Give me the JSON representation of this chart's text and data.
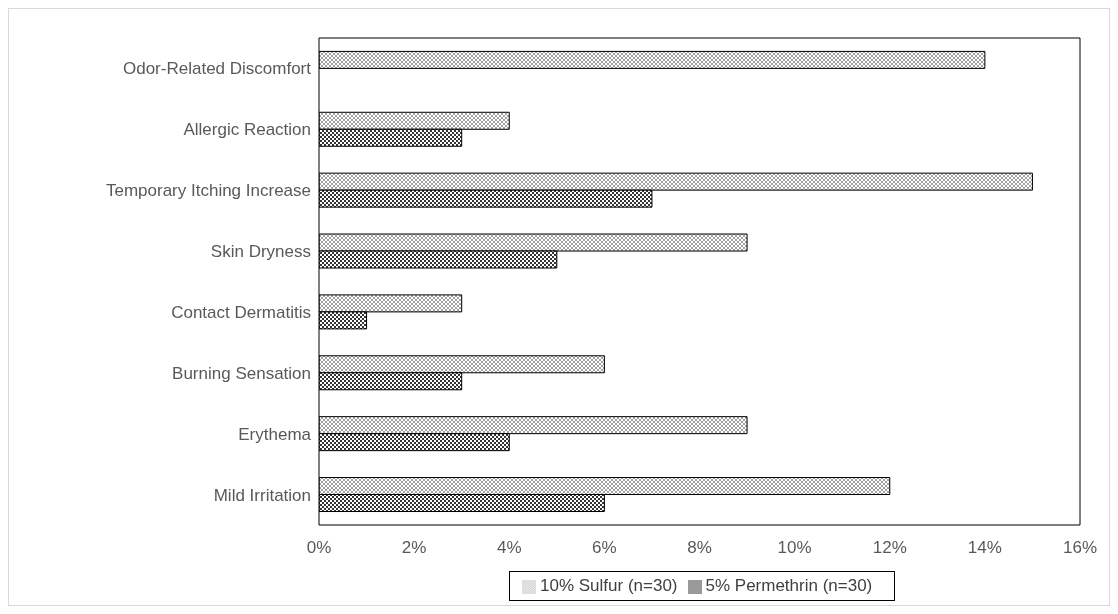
{
  "chart_data": {
    "type": "bar",
    "orientation": "horizontal",
    "categories": [
      "Odor-Related Discomfort",
      "Allergic Reaction",
      "Temporary Itching Increase",
      "Skin Dryness",
      "Contact Dermatitis",
      "Burning Sensation",
      "Erythema",
      "Mild Irritation"
    ],
    "series": [
      {
        "name": "10% Sulfur (n=30)",
        "color": "#000000",
        "values": [
          14,
          4,
          15,
          9,
          3,
          6,
          9,
          12
        ]
      },
      {
        "name": "5% Permethrin (n=30)",
        "color": "#000000",
        "values": [
          0,
          3,
          7,
          5,
          1,
          3,
          4,
          6
        ]
      }
    ],
    "xlim": [
      0,
      16
    ],
    "xticks": [
      {
        "value": 0,
        "label": "0%"
      },
      {
        "value": 2,
        "label": "2%"
      },
      {
        "value": 4,
        "label": "4%"
      },
      {
        "value": 6,
        "label": "6%"
      },
      {
        "value": 8,
        "label": "8%"
      },
      {
        "value": 10,
        "label": "10%"
      },
      {
        "value": 12,
        "label": "12%"
      },
      {
        "value": 14,
        "label": "14%"
      },
      {
        "value": 16,
        "label": "16%"
      }
    ],
    "grid": false,
    "legend": "bottom"
  }
}
